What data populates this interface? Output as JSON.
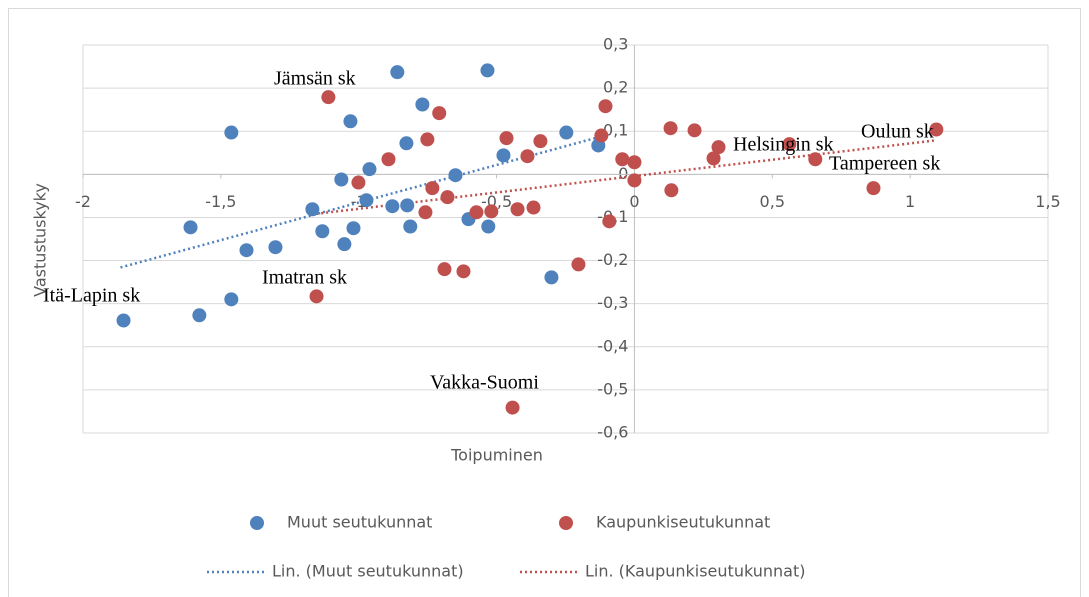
{
  "chart_data": {
    "type": "scatter",
    "xlabel": "Toipuminen",
    "ylabel": "Vastustuskyky",
    "xlim": [
      -2,
      1.5
    ],
    "ylim": [
      -0.6,
      0.3
    ],
    "xticks": [
      -2,
      {
        "value": -1.5,
        "label": "-1,5"
      },
      -1,
      {
        "value": -0.5,
        "label": "-0,5"
      },
      0,
      {
        "value": 0.5,
        "label": "0,5"
      },
      1,
      {
        "value": 1.5,
        "label": "1,5"
      }
    ],
    "yticks": [
      {
        "value": 0.3,
        "label": "0,3"
      },
      {
        "value": 0.2,
        "label": "0,2"
      },
      {
        "value": 0.1,
        "label": "0,1"
      },
      0,
      {
        "value": -0.1,
        "label": "-0,1"
      },
      {
        "value": -0.2,
        "label": "-0,2"
      },
      {
        "value": -0.3,
        "label": "-0,3"
      },
      {
        "value": -0.4,
        "label": "-0,4"
      },
      {
        "value": -0.5,
        "label": "-0,5"
      },
      {
        "value": -0.6,
        "label": "-0,6"
      }
    ],
    "grid": true,
    "series": [
      {
        "name": "Muut seutukunnat",
        "color": "#4f81bd",
        "x": [
          -1.853,
          -1.578,
          -1.61,
          -1.462,
          -1.462,
          -1.407,
          -1.302,
          -1.168,
          -1.132,
          -1.063,
          -1.052,
          -1.03,
          -1.019,
          -0.972,
          -0.961,
          -0.878,
          -0.86,
          -0.827,
          -0.824,
          -0.813,
          -0.769,
          -0.649,
          -0.602,
          -0.533,
          -0.53,
          -0.475,
          -0.301,
          -0.247,
          -0.131
        ],
        "values": [
          -0.339,
          -0.327,
          -0.123,
          -0.29,
          0.097,
          -0.176,
          -0.169,
          -0.081,
          -0.132,
          -0.012,
          -0.162,
          0.123,
          -0.125,
          -0.06,
          0.012,
          -0.074,
          0.237,
          0.072,
          -0.072,
          -0.121,
          0.162,
          -0.002,
          -0.104,
          0.241,
          -0.121,
          0.044,
          -0.239,
          0.097,
          0.067
        ]
      },
      {
        "name": "Kaupunkiseutukunnat",
        "color": "#c0504d",
        "x": [
          -1.11,
          -1.153,
          -1.001,
          -0.892,
          -0.751,
          -0.758,
          -0.733,
          -0.708,
          -0.689,
          -0.678,
          -0.62,
          -0.573,
          -0.519,
          -0.464,
          -0.442,
          -0.424,
          -0.388,
          -0.366,
          -0.341,
          -0.203,
          -0.105,
          -0.12,
          -0.091,
          -0.044,
          0,
          0,
          0.131,
          0.134,
          0.218,
          0.287,
          0.305,
          0.562,
          0.656,
          0.867,
          1.095
        ],
        "values": [
          0.179,
          -0.283,
          -0.019,
          0.035,
          0.081,
          -0.088,
          -0.032,
          0.142,
          -0.22,
          -0.053,
          -0.225,
          -0.088,
          -0.086,
          0.084,
          -0.541,
          -0.081,
          0.042,
          -0.077,
          0.077,
          -0.209,
          0.158,
          0.09,
          -0.109,
          0.035,
          -0.014,
          0.028,
          0.107,
          -0.037,
          0.102,
          0.037,
          0.063,
          0.07,
          0.035,
          -0.032,
          0.104
        ]
      }
    ],
    "trendlines": [
      {
        "name": "Lin. (Muut seutukunnat)",
        "color": "#4f81bd",
        "x": [
          -1.864,
          -0.131
        ],
        "values": [
          -0.216,
          0.086
        ]
      },
      {
        "name": "Lin. (Kaupunkiseutukunnat)",
        "color": "#c0504d",
        "x": [
          -1.172,
          1.095
        ],
        "values": [
          -0.093,
          0.079
        ]
      }
    ],
    "annotations": [
      "Jämsän sk",
      "Helsingin sk",
      "Oulun sk",
      "Tampereen sk",
      "Imatran sk",
      "Itä-Lapin sk",
      "Vakka-Suomi"
    ]
  }
}
